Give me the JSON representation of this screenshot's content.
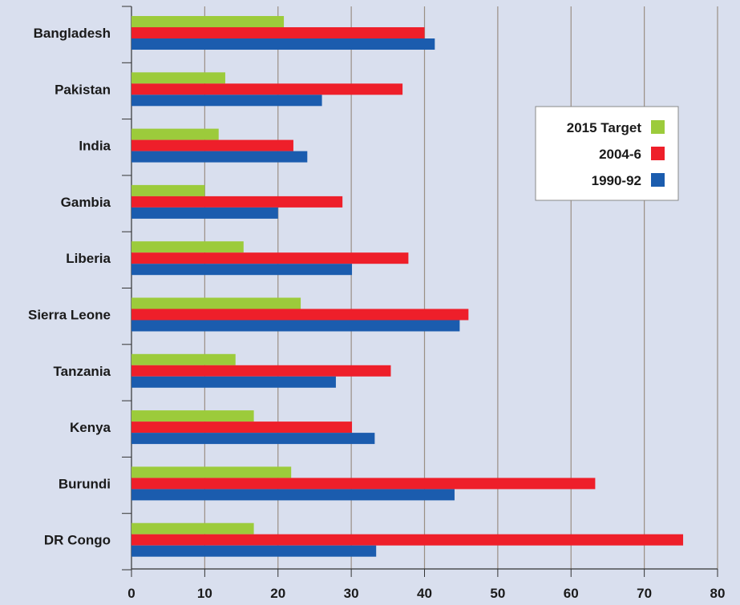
{
  "chart_data": {
    "type": "bar",
    "orientation": "horizontal",
    "categories": [
      "Bangladesh",
      "Pakistan",
      "India",
      "Gambia",
      "Liberia",
      "Sierra Leone",
      "Tanzania",
      "Kenya",
      "Burundi",
      "DR Congo"
    ],
    "series": [
      {
        "name": "2015 Target",
        "color": "#9ccb3b",
        "values": [
          20.8,
          12.8,
          11.9,
          10.0,
          15.3,
          23.1,
          14.2,
          16.7,
          21.8,
          16.7
        ]
      },
      {
        "name": "2004-6",
        "color": "#ee1f2a",
        "values": [
          40.0,
          37.0,
          22.1,
          28.8,
          37.8,
          46.0,
          35.4,
          30.1,
          63.3,
          75.3
        ]
      },
      {
        "name": "1990-92",
        "color": "#1b5cae",
        "values": [
          41.4,
          26.0,
          24.0,
          20.0,
          30.1,
          44.8,
          27.9,
          33.2,
          44.1,
          33.4
        ]
      }
    ],
    "x_ticks": [
      0,
      10,
      20,
      30,
      40,
      50,
      60,
      70,
      80
    ],
    "xlim": [
      0,
      80
    ],
    "legend_order": [
      "2015 Target",
      "2004-6",
      "1990-92"
    ],
    "legend_position": "right",
    "grid": "vertical",
    "title": "",
    "xlabel": "",
    "ylabel": ""
  },
  "colors": {
    "background": "#d9dfee",
    "gridline": "#9a8f84",
    "legend_background": "#ffffff"
  }
}
